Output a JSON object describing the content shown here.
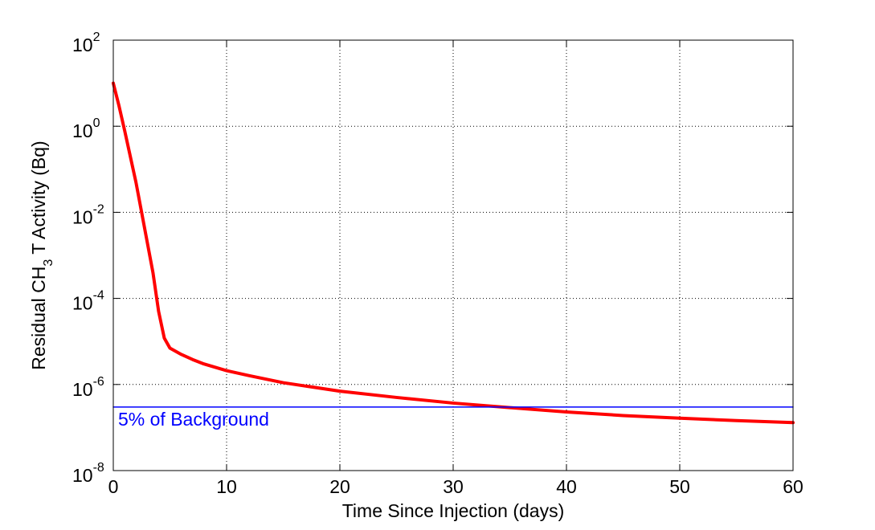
{
  "chart_data": {
    "type": "line",
    "title": "",
    "xlabel": "Time Since Injection (days)",
    "ylabel": {
      "prefix": "Residual CH",
      "subscript": "3",
      "suffix": "T Activity (Bq)"
    },
    "xlim": [
      0,
      60
    ],
    "ylim": [
      1e-08,
      100
    ],
    "y_scale": "log",
    "grid": true,
    "x_ticks": [
      "0",
      "10",
      "20",
      "30",
      "40",
      "50",
      "60"
    ],
    "y_ticks": [
      {
        "value": 1e-08,
        "base": "10",
        "exponent": "-8"
      },
      {
        "value": 1e-06,
        "base": "10",
        "exponent": "-6"
      },
      {
        "value": 0.0001,
        "base": "10",
        "exponent": "-4"
      },
      {
        "value": 0.01,
        "base": "10",
        "exponent": "-2"
      },
      {
        "value": 1,
        "base": "10",
        "exponent": "0"
      },
      {
        "value": 100,
        "base": "10",
        "exponent": "2"
      }
    ],
    "series": [
      {
        "color": "#ff0000",
        "points": [
          [
            0,
            10
          ],
          [
            0.5,
            3
          ],
          [
            1,
            0.8
          ],
          [
            1.5,
            0.2
          ],
          [
            2,
            0.05
          ],
          [
            2.5,
            0.01
          ],
          [
            3,
            0.002
          ],
          [
            3.5,
            0.0004
          ],
          [
            4,
            5e-05
          ],
          [
            4.5,
            1.2e-05
          ],
          [
            5,
            7e-06
          ],
          [
            6,
            5e-06
          ],
          [
            7,
            3.8e-06
          ],
          [
            8,
            3e-06
          ],
          [
            10,
            2.1e-06
          ],
          [
            12,
            1.6e-06
          ],
          [
            15,
            1.1e-06
          ],
          [
            20,
            7e-07
          ],
          [
            25,
            5e-07
          ],
          [
            30,
            3.7e-07
          ],
          [
            35,
            2.9e-07
          ],
          [
            40,
            2.3e-07
          ],
          [
            45,
            1.9e-07
          ],
          [
            50,
            1.65e-07
          ],
          [
            55,
            1.45e-07
          ],
          [
            60,
            1.3e-07
          ]
        ]
      },
      {
        "color": "#0000ff",
        "label": "5% of Background",
        "points": [
          [
            0,
            3e-07
          ],
          [
            60,
            3e-07
          ]
        ]
      }
    ]
  }
}
